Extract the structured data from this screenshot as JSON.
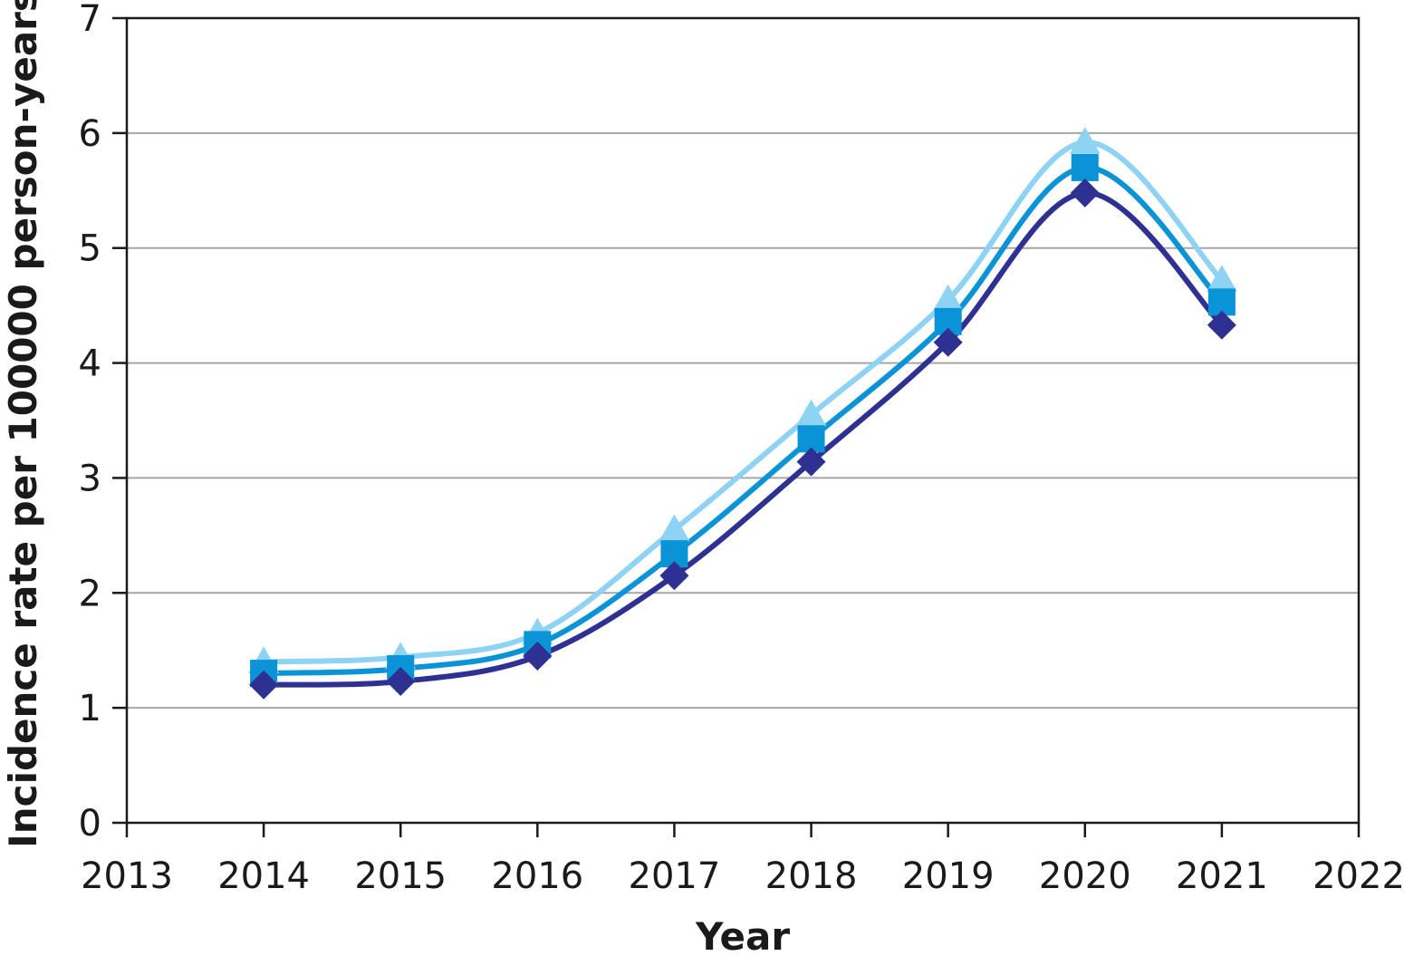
{
  "chart_data": {
    "type": "line",
    "title": "",
    "xlabel": "Year",
    "ylabel": "Incidence rate per 100000 person-years",
    "xlim": [
      2013,
      2022
    ],
    "ylim": [
      0,
      7
    ],
    "x_ticks": [
      2013,
      2014,
      2015,
      2016,
      2017,
      2018,
      2019,
      2020,
      2021,
      2022
    ],
    "y_ticks": [
      0,
      1,
      2,
      3,
      4,
      5,
      6,
      7
    ],
    "grid": "horizontal",
    "legend": "none",
    "x": [
      2014,
      2015,
      2016,
      2017,
      2018,
      2019,
      2020,
      2021
    ],
    "series": [
      {
        "marker": "triangle",
        "color": "#8fd3f4",
        "values": [
          1.4,
          1.44,
          1.65,
          2.55,
          3.55,
          4.55,
          5.92,
          4.72
        ]
      },
      {
        "marker": "square",
        "color": "#0a93d6",
        "values": [
          1.3,
          1.34,
          1.55,
          2.34,
          3.34,
          4.36,
          5.7,
          4.53
        ]
      },
      {
        "marker": "diamond",
        "color": "#2e3192",
        "values": [
          1.2,
          1.23,
          1.45,
          2.15,
          3.14,
          4.18,
          5.48,
          4.33
        ]
      }
    ]
  }
}
